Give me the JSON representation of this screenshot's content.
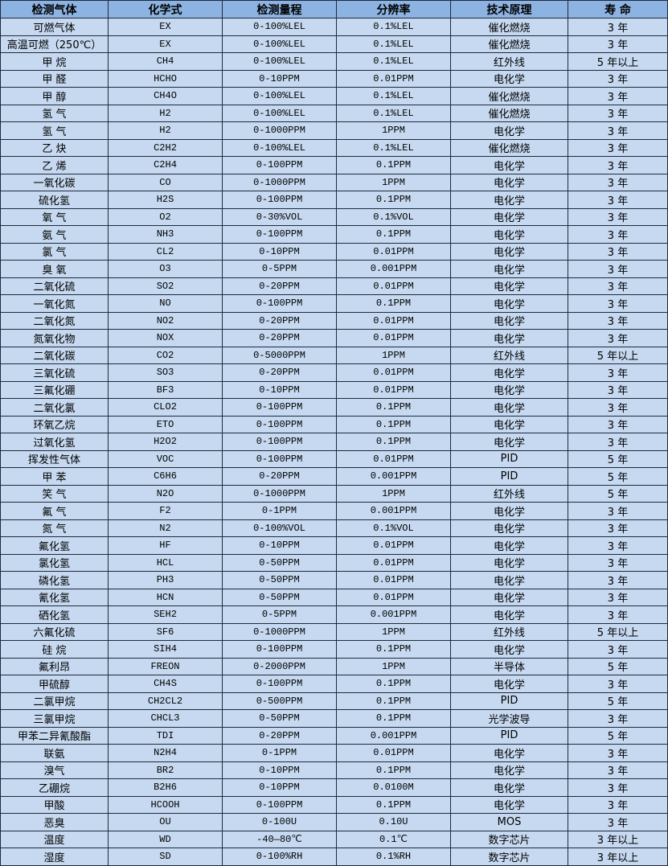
{
  "table": {
    "headers": [
      "检测气体",
      "化学式",
      "检测量程",
      "分辨率",
      "技术原理",
      "寿 命"
    ],
    "rows": [
      [
        "可燃气体",
        "EX",
        "0-100%LEL",
        "0.1%LEL",
        "催化燃烧",
        "3 年"
      ],
      [
        "高温可燃（250℃）",
        "EX",
        "0-100%LEL",
        "0.1%LEL",
        "催化燃烧",
        "3 年"
      ],
      [
        "甲 烷",
        "CH4",
        "0-100%LEL",
        "0.1%LEL",
        "红外线",
        "5 年以上"
      ],
      [
        "甲 醛",
        "HCHO",
        "0-10PPM",
        "0.01PPM",
        "电化学",
        "3 年"
      ],
      [
        "甲 醇",
        "CH4O",
        "0-100%LEL",
        "0.1%LEL",
        "催化燃烧",
        "3 年"
      ],
      [
        "氢 气",
        "H2",
        "0-100%LEL",
        "0.1%LEL",
        "催化燃烧",
        "3 年"
      ],
      [
        "氢 气",
        "H2",
        "0-1000PPM",
        "1PPM",
        "电化学",
        "3 年"
      ],
      [
        "乙 炔",
        "C2H2",
        "0-100%LEL",
        "0.1%LEL",
        "催化燃烧",
        "3 年"
      ],
      [
        "乙 烯",
        "C2H4",
        "0-100PPM",
        "0.1PPM",
        "电化学",
        "3 年"
      ],
      [
        "一氧化碳",
        "CO",
        "0-1000PPM",
        "1PPM",
        "电化学",
        "3 年"
      ],
      [
        "硫化氢",
        "H2S",
        "0-100PPM",
        "0.1PPM",
        "电化学",
        "3 年"
      ],
      [
        "氧 气",
        "O2",
        "0-30%VOL",
        "0.1%VOL",
        "电化学",
        "3 年"
      ],
      [
        "氨 气",
        "NH3",
        "0-100PPM",
        "0.1PPM",
        "电化学",
        "3 年"
      ],
      [
        "氯 气",
        "CL2",
        "0-10PPM",
        "0.01PPM",
        "电化学",
        "3 年"
      ],
      [
        "臭 氧",
        "O3",
        "0-5PPM",
        "0.001PPM",
        "电化学",
        "3 年"
      ],
      [
        "二氧化硫",
        "SO2",
        "0-20PPM",
        "0.01PPM",
        "电化学",
        "3 年"
      ],
      [
        "一氧化氮",
        "NO",
        "0-100PPM",
        "0.1PPM",
        "电化学",
        "3 年"
      ],
      [
        "二氧化氮",
        "NO2",
        "0-20PPM",
        "0.01PPM",
        "电化学",
        "3 年"
      ],
      [
        "氮氧化物",
        "NOX",
        "0-20PPM",
        "0.01PPM",
        "电化学",
        "3 年"
      ],
      [
        "二氧化碳",
        "CO2",
        "0-5000PPM",
        "1PPM",
        "红外线",
        "5 年以上"
      ],
      [
        "三氧化硫",
        "SO3",
        "0-20PPM",
        "0.01PPM",
        "电化学",
        "3 年"
      ],
      [
        "三氟化硼",
        "BF3",
        "0-10PPM",
        "0.01PPM",
        "电化学",
        "3 年"
      ],
      [
        "二氧化氯",
        "CLO2",
        "0-100PPM",
        "0.1PPM",
        "电化学",
        "3 年"
      ],
      [
        "环氧乙烷",
        "ETO",
        "0-100PPM",
        "0.1PPM",
        "电化学",
        "3 年"
      ],
      [
        "过氧化氢",
        "H2O2",
        "0-100PPM",
        "0.1PPM",
        "电化学",
        "3 年"
      ],
      [
        "挥发性气体",
        "VOC",
        "0-100PPM",
        "0.01PPM",
        "PID",
        "5 年"
      ],
      [
        "甲 苯",
        "C6H6",
        "0-20PPM",
        "0.001PPM",
        "PID",
        "5 年"
      ],
      [
        "笑 气",
        "N2O",
        "0-1000PPM",
        "1PPM",
        "红外线",
        "5 年"
      ],
      [
        "氟 气",
        "F2",
        "0-1PPM",
        "0.001PPM",
        "电化学",
        "3 年"
      ],
      [
        "氮 气",
        "N2",
        "0-100%VOL",
        "0.1%VOL",
        "电化学",
        "3 年"
      ],
      [
        "氟化氢",
        "HF",
        "0-10PPM",
        "0.01PPM",
        "电化学",
        "3 年"
      ],
      [
        "氯化氢",
        "HCL",
        "0-50PPM",
        "0.01PPM",
        "电化学",
        "3 年"
      ],
      [
        "磷化氢",
        "PH3",
        "0-50PPM",
        "0.01PPM",
        "电化学",
        "3 年"
      ],
      [
        "氰化氢",
        "HCN",
        "0-50PPM",
        "0.01PPM",
        "电化学",
        "3 年"
      ],
      [
        "硒化氢",
        "SEH2",
        "0-5PPM",
        "0.001PPM",
        "电化学",
        "3 年"
      ],
      [
        "六氟化硫",
        "SF6",
        "0-1000PPM",
        "1PPM",
        "红外线",
        "5 年以上"
      ],
      [
        "硅 烷",
        "SIH4",
        "0-100PPM",
        "0.1PPM",
        "电化学",
        "3 年"
      ],
      [
        "氟利昂",
        "FREON",
        "0-2000PPM",
        "1PPM",
        "半导体",
        "5 年"
      ],
      [
        "甲硫醇",
        "CH4S",
        "0-100PPM",
        "0.1PPM",
        "电化学",
        "3 年"
      ],
      [
        "二氯甲烷",
        "CH2CL2",
        "0-500PPM",
        "0.1PPM",
        "PID",
        "5 年"
      ],
      [
        "三氯甲烷",
        "CHCL3",
        "0-50PPM",
        "0.1PPM",
        "光学波导",
        "3 年"
      ],
      [
        "甲苯二异氰酸酯",
        "TDI",
        "0-20PPM",
        "0.001PPM",
        "PID",
        "5 年"
      ],
      [
        "联氨",
        "N2H4",
        "0-1PPM",
        "0.01PPM",
        "电化学",
        "3 年"
      ],
      [
        "溴气",
        "BR2",
        "0-10PPM",
        "0.1PPM",
        "电化学",
        "3 年"
      ],
      [
        "乙硼烷",
        "B2H6",
        "0-10PPM",
        "0.0100M",
        "电化学",
        "3 年"
      ],
      [
        "甲酸",
        "HCOOH",
        "0-100PPM",
        "0.1PPM",
        "电化学",
        "3 年"
      ],
      [
        "恶臭",
        "OU",
        "0-100U",
        "0.10U",
        "MOS",
        "3 年"
      ],
      [
        "温度",
        "WD",
        "-40—80℃",
        "0.1℃",
        "数字芯片",
        "3 年以上"
      ],
      [
        "湿度",
        "SD",
        "0-100%RH",
        "0.1%RH",
        "数字芯片",
        "3 年以上"
      ]
    ]
  },
  "colors": {
    "header_bg": "#8db3e2",
    "cell_bg": "#c6d9f0",
    "border": "#1f2a3a"
  }
}
